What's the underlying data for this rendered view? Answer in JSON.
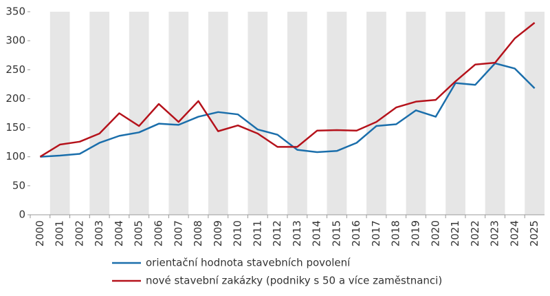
{
  "chart_data": {
    "type": "line",
    "categories": [
      "2000",
      "2001",
      "2002",
      "2003",
      "2004",
      "2005",
      "2006",
      "2007",
      "2008",
      "2009",
      "2010",
      "2011",
      "2012",
      "2013",
      "2014",
      "2015",
      "2016",
      "2017",
      "2018",
      "2019",
      "2020",
      "2021",
      "2022",
      "2023",
      "2024",
      "2025"
    ],
    "series": [
      {
        "name": "orientační hodnota stavebních povolení",
        "color": "#1a6eab",
        "values": [
          100,
          102,
          105,
          124,
          136,
          142,
          157,
          155,
          169,
          177,
          173,
          147,
          138,
          112,
          108,
          110,
          124,
          153,
          156,
          180,
          169,
          227,
          224,
          261,
          252,
          218
        ]
      },
      {
        "name": "nové stavební zakázky (podniky s 50 a více zaměstnanci)",
        "color": "#b5121b",
        "values": [
          100,
          121,
          126,
          140,
          175,
          153,
          191,
          160,
          196,
          144,
          154,
          140,
          117,
          117,
          145,
          146,
          145,
          160,
          185,
          195,
          198,
          230,
          259,
          262,
          304,
          331
        ]
      }
    ],
    "ylim": [
      0,
      350
    ],
    "yticks": [
      0,
      50,
      100,
      150,
      200,
      250,
      300,
      350
    ],
    "grid": false
  }
}
